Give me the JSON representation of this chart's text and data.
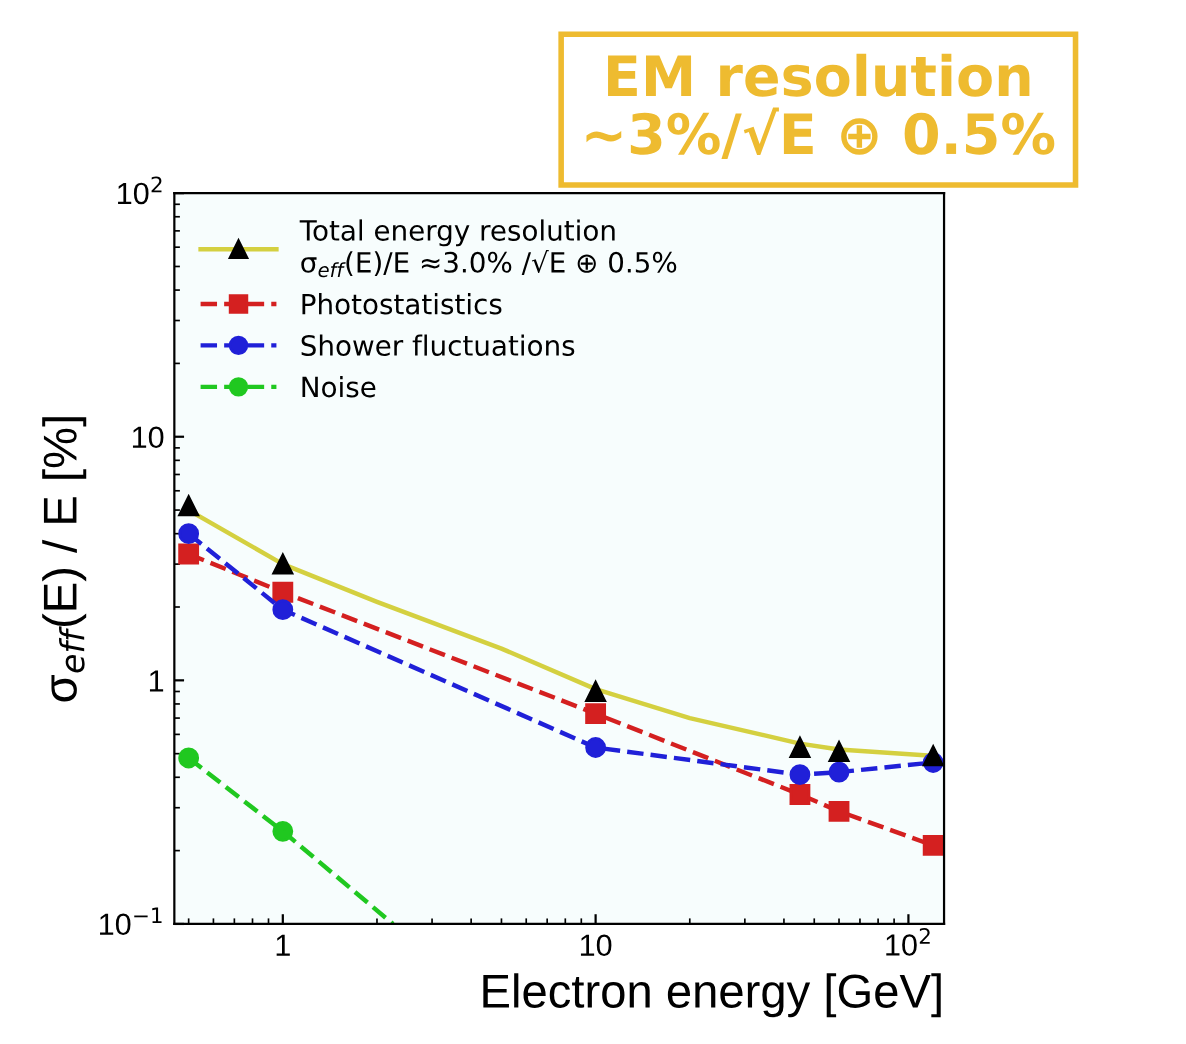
{
  "chart_data": {
    "type": "line",
    "xlabel": "Electron energy [GeV]",
    "ylabel": "σ$_{eff}$(E) / E [%]",
    "log": "xy",
    "xlim": [
      0.45,
      130
    ],
    "ylim": [
      0.1,
      100
    ],
    "xticks": [
      1,
      10,
      {
        "value": 100,
        "label": "10$^{2}$"
      }
    ],
    "yticks": [
      {
        "value": 0.1,
        "label": "10$^{−1}$"
      },
      1,
      10,
      {
        "value": 100,
        "label": "10$^{2}$"
      }
    ],
    "grid": false,
    "legend": "top left",
    "annotations": [
      "EM resolution\n~3%/√E ⊕ 0.5%"
    ],
    "series": [
      {
        "color": "#d4d040",
        "marker": "none",
        "line_style": "solid",
        "x": [
          0.5,
          1,
          2,
          5,
          10,
          20,
          45,
          60,
          120
        ],
        "values": [
          5.0,
          3.0,
          2.1,
          1.35,
          0.92,
          0.7,
          0.55,
          0.52,
          0.49
        ]
      },
      {
        "name": "Total energy resolution\nσ$_{eff}$(E)/E ≈3.0% /√E ⊕ 0.5%",
        "type": "scatter",
        "color": "#000000",
        "marker": "triangle",
        "x": [
          0.5,
          1,
          10,
          45,
          60,
          120
        ],
        "values": [
          5.2,
          3.0,
          0.9,
          0.53,
          0.51,
          0.49
        ]
      },
      {
        "name": "Photostatistics",
        "color": "#d42020",
        "marker": "square",
        "line_style": "dashed",
        "x": [
          0.5,
          1,
          10,
          45,
          60,
          120
        ],
        "values": [
          3.3,
          2.3,
          0.73,
          0.34,
          0.29,
          0.21
        ]
      },
      {
        "name": "Shower fluctuations",
        "color": "#2020d8",
        "marker": "circle",
        "line_style": "dashed",
        "x": [
          0.5,
          1,
          10,
          45,
          60,
          120
        ],
        "values": [
          4.0,
          1.95,
          0.53,
          0.41,
          0.42,
          0.46
        ]
      },
      {
        "name": "Noise",
        "color": "#20c820",
        "marker": "circle",
        "line_style": "dashed",
        "x": [
          0.5,
          1
        ],
        "values": [
          0.48,
          0.24
        ]
      },
      {
        "color": "#20c820",
        "marker": "none",
        "line_style": "dashed",
        "x": [
          1,
          2.25
        ],
        "values": [
          0.24,
          0.1
        ]
      }
    ]
  }
}
